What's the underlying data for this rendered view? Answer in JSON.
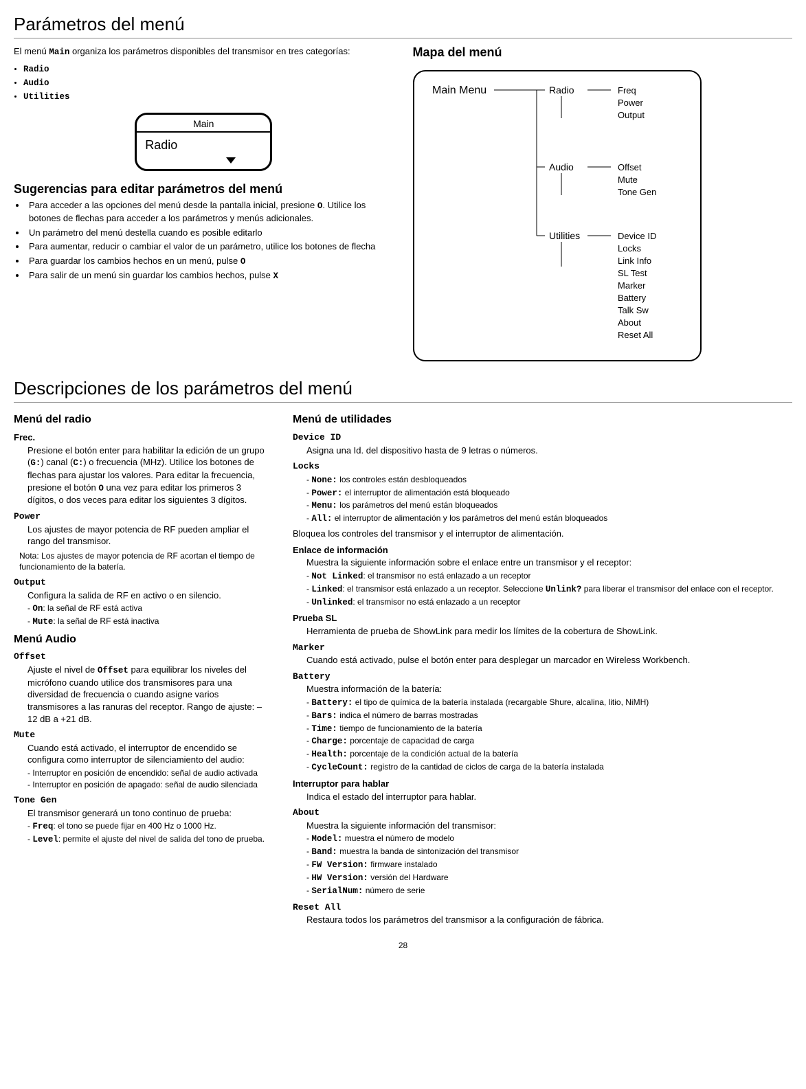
{
  "page_number": "28",
  "title1": "Parámetros del menú",
  "intro": {
    "p1_a": "El menú ",
    "p1_mono": "Main",
    "p1_b": " organiza los parámetros disponibles del transmisor en tres categorías:",
    "bullets": [
      "Radio",
      "Audio",
      "Utilities"
    ]
  },
  "lcd": {
    "top": "Main",
    "body": "Radio"
  },
  "tips_title": "Sugerencias para editar parámetros del menú",
  "tips": [
    {
      "pre": "Para acceder a las opciones del menú desde la pantalla inicial, presione ",
      "mono": "O",
      "post": ". Utilice los botones de flechas para acceder a los parámetros y menús adicionales."
    },
    {
      "pre": "Un parámetro del menú destella cuando es posible editarlo",
      "mono": "",
      "post": ""
    },
    {
      "pre": "Para aumentar, reducir o cambiar el valor de un parámetro, utilice los botones de flecha",
      "mono": "",
      "post": ""
    },
    {
      "pre": "Para guardar los cambios hechos en un menú, pulse ",
      "mono": "O",
      "post": ""
    },
    {
      "pre": "Para salir de un menú sin guardar los cambios hechos, pulse ",
      "mono": "X",
      "post": ""
    }
  ],
  "map_title": "Mapa del menú",
  "map": {
    "main": "Main Menu",
    "cats": [
      {
        "name": "Radio",
        "items": [
          "Freq",
          "Power",
          "Output"
        ]
      },
      {
        "name": "Audio",
        "items": [
          "Offset",
          "Mute",
          "Tone Gen"
        ]
      },
      {
        "name": "Utilities",
        "items": [
          "Device ID",
          "Locks",
          "Link Info",
          "SL Test",
          "Marker",
          "Battery",
          "Talk Sw",
          "About",
          "Reset All"
        ]
      }
    ]
  },
  "title2": "Descripciones de los parámetros del menú",
  "radio_menu": {
    "title": "Menú del radio",
    "frec_label": "Frec.",
    "frec_a": "Presione el botón enter para habilitar la edición de un grupo (",
    "frec_g": "G:",
    "frec_b": ") canal (",
    "frec_c": "C:",
    "frec_cparen": ") o frecuencia (MHz). Utilice los botones de flechas para ajustar los valores. Para editar la frecuencia, presione el botón ",
    "frec_o": "O",
    "frec_end": " una vez para editar los primeros 3 dígitos, o dos veces para editar los siguientes 3 dígitos.",
    "power_label": "Power",
    "power_desc": "Los ajustes de mayor potencia de RF pueden ampliar el rango del transmisor.",
    "power_note": "Nota: Los ajustes de mayor potencia de RF acortan el tiempo de funcionamiento de la batería.",
    "output_label": "Output",
    "output_desc": "Configura la salida de RF en activo o en silencio.",
    "output_list": [
      {
        "k": "On",
        "v": ": la señal de RF está activa"
      },
      {
        "k": "Mute",
        "v": ": la señal de RF está inactiva"
      }
    ]
  },
  "audio_menu": {
    "title": "Menú Audio",
    "offset_label": "Offset",
    "offset_a": "Ajuste el nivel de ",
    "offset_mono": "Offset",
    "offset_b": " para equilibrar los niveles del micrófono cuando utilice dos transmisores para una diversidad de frecuencia o cuando asigne varios transmisores a las ranuras del receptor. Rango de ajuste: –12 dB a +21 dB.",
    "mute_label": "Mute",
    "mute_desc": "Cuando está activado, el interruptor de encendido se configura como interruptor de silenciamiento del audio:",
    "mute_list": [
      "Interruptor en posición de encendido: señal de audio activada",
      "Interruptor en posición de apagado: señal de audio silenciada"
    ],
    "tone_label": "Tone Gen",
    "tone_desc": "El transmisor generará un tono continuo de prueba:",
    "tone_list": [
      {
        "k": "Freq",
        "v": ": el tono se puede fijar en 400 Hz o 1000 Hz."
      },
      {
        "k": "Level",
        "v": ": permite el ajuste del nivel de salida del tono de prueba."
      }
    ]
  },
  "util_menu": {
    "title": "Menú de utilidades",
    "devid_label": "Device ID",
    "devid_desc": "Asigna una Id. del dispositivo hasta de 9 letras o números.",
    "locks_label": "Locks",
    "locks_list": [
      {
        "k": "None:",
        "v": " los controles están desbloqueados"
      },
      {
        "k": "Power:",
        "v": " el interruptor de alimentación está bloqueado"
      },
      {
        "k": "Menu:",
        "v": " los parámetros del menú están bloqueados"
      },
      {
        "k": "All:",
        "v": " el interruptor de alimentación y los parámetros del menú están bloqueados"
      }
    ],
    "locks_desc": "Bloquea los controles del transmisor y el interruptor de alimentación.",
    "link_label": "Enlace de información",
    "link_desc": "Muestra la siguiente información sobre el enlace entre un transmisor y el receptor:",
    "link_list": [
      {
        "k": "Not Linked",
        "v": ": el transmisor no está enlazado a un receptor"
      },
      {
        "k": "Linked",
        "v_a": ": el transmisor está enlazado a un receptor. Seleccione ",
        "v_mono": "Unlink?",
        "v_b": " para liberar el transmisor del enlace con el receptor."
      },
      {
        "k": "Unlinked",
        "v": ": el transmisor no está enlazado a un receptor"
      }
    ],
    "sl_label": "Prueba SL",
    "sl_desc": "Herramienta de prueba de ShowLink para medir los límites de la cobertura de ShowLink.",
    "marker_label": "Marker",
    "marker_desc": "Cuando está activado, pulse el botón enter para desplegar un marcador en Wireless Workbench.",
    "batt_label": "Battery",
    "batt_desc": "Muestra información de la batería:",
    "batt_list": [
      {
        "k": "Battery:",
        "v": " el tipo de química de la batería instalada (recargable Shure, alcalina, litio, NiMH)"
      },
      {
        "k": "Bars:",
        "v": " indica el número de barras mostradas"
      },
      {
        "k": "Time:",
        "v": " tiempo de funcionamiento de la batería"
      },
      {
        "k": "Charge:",
        "v": " porcentaje de capacidad de carga"
      },
      {
        "k": "Health:",
        "v": " porcentaje de la condición actual de la batería"
      },
      {
        "k": "CycleCount:",
        "v": " registro de la cantidad de ciclos de carga de la batería instalada"
      }
    ],
    "talk_label": "Interruptor para hablar",
    "talk_desc": "Indica el estado del interruptor para hablar.",
    "about_label": "About",
    "about_desc": "Muestra la siguiente información del transmisor:",
    "about_list": [
      {
        "k": "Model:",
        "v": " muestra el número de modelo"
      },
      {
        "k": "Band:",
        "v": " muestra la banda de sintonización del transmisor"
      },
      {
        "k": "FW Version:",
        "v": " firmware instalado"
      },
      {
        "k": "HW Version:",
        "v": " versión del Hardware"
      },
      {
        "k": "SerialNum:",
        "v": " número de serie"
      }
    ],
    "reset_label": "Reset All",
    "reset_desc": "Restaura todos los parámetros del transmisor a la configuración de fábrica."
  }
}
